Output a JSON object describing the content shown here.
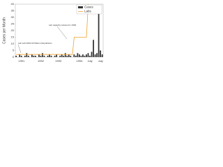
{
  "chart_data": {
    "type": "bar",
    "y_label": "Cases per Month",
    "annotations": [
      "Lab capacity reduced in 1993",
      "Lab self-1991-93 Marion Republican"
    ],
    "categories": [
      null,
      null,
      null,
      "1991",
      null,
      null,
      null,
      null,
      null,
      null,
      null,
      null,
      null,
      null,
      "1992",
      null,
      null,
      null,
      null,
      null,
      null,
      null,
      null,
      null,
      "1993",
      null,
      null,
      null,
      null,
      null,
      null,
      null,
      null,
      null,
      null,
      null,
      "1994",
      null,
      null,
      null,
      null,
      null,
      "July",
      null,
      null,
      null,
      null,
      null,
      "July",
      null
    ],
    "series": [
      {
        "name": "Cases",
        "color": "#333333",
        "values": [
          1,
          0,
          2,
          1,
          0,
          1,
          3,
          1,
          0,
          2,
          1,
          1,
          0,
          2,
          1,
          3,
          1,
          0,
          1,
          2,
          1,
          0,
          1,
          2,
          0,
          1,
          2,
          1,
          3,
          1,
          2,
          1,
          0,
          2,
          1,
          3,
          2,
          1,
          2,
          1,
          2,
          3,
          1,
          4,
          13,
          2,
          3,
          35,
          5,
          2
        ]
      },
      {
        "name": "Labs",
        "color": "#f0a030",
        "values": [
          2,
          2,
          2,
          2,
          2,
          2,
          2,
          2,
          2,
          2,
          2,
          2,
          2,
          2,
          2,
          2,
          2,
          2,
          2,
          2,
          2,
          2,
          2,
          2,
          2,
          2,
          2,
          2,
          2,
          2,
          2,
          2,
          2,
          15,
          15,
          15,
          15,
          15,
          15,
          15,
          15,
          40,
          null,
          null,
          null,
          null,
          null,
          null,
          null,
          null
        ]
      }
    ],
    "ylim": [
      0,
      40
    ],
    "yticks": [
      0,
      5,
      10,
      15,
      20,
      25,
      30,
      35,
      40
    ],
    "legend": "top-right"
  }
}
